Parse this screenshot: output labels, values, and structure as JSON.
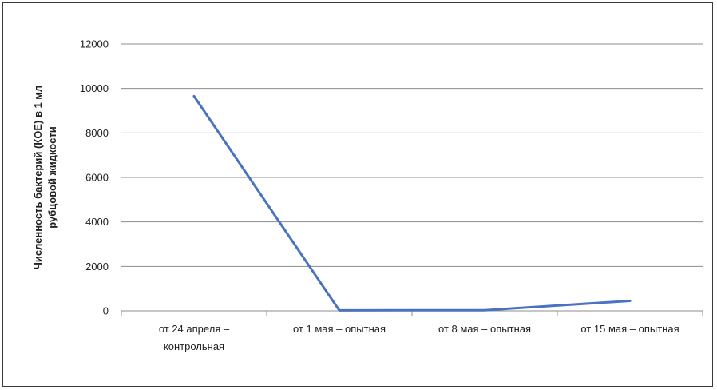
{
  "chart_data": {
    "type": "line",
    "title": "",
    "ylabel_lines": [
      "Численность бактерий (КОЕ) в 1 мл",
      "рубцовой жидкости"
    ],
    "xlabel": "",
    "categories": [
      [
        "от 24 апреля –",
        "контрольная"
      ],
      [
        "от 1 мая – опытная"
      ],
      [
        "от 8 мая – опытная"
      ],
      [
        "от 15 мая – опытная"
      ]
    ],
    "series": [
      {
        "values": [
          9650,
          20,
          30,
          450
        ]
      }
    ],
    "ylim": [
      0,
      12000
    ],
    "yticks": [
      0,
      2000,
      4000,
      6000,
      8000,
      10000,
      12000
    ],
    "grid": true,
    "legend": "none",
    "colors": {
      "line": "#4a72c0",
      "grid": "#8c8c8c",
      "axis": "#8c8c8c"
    }
  }
}
